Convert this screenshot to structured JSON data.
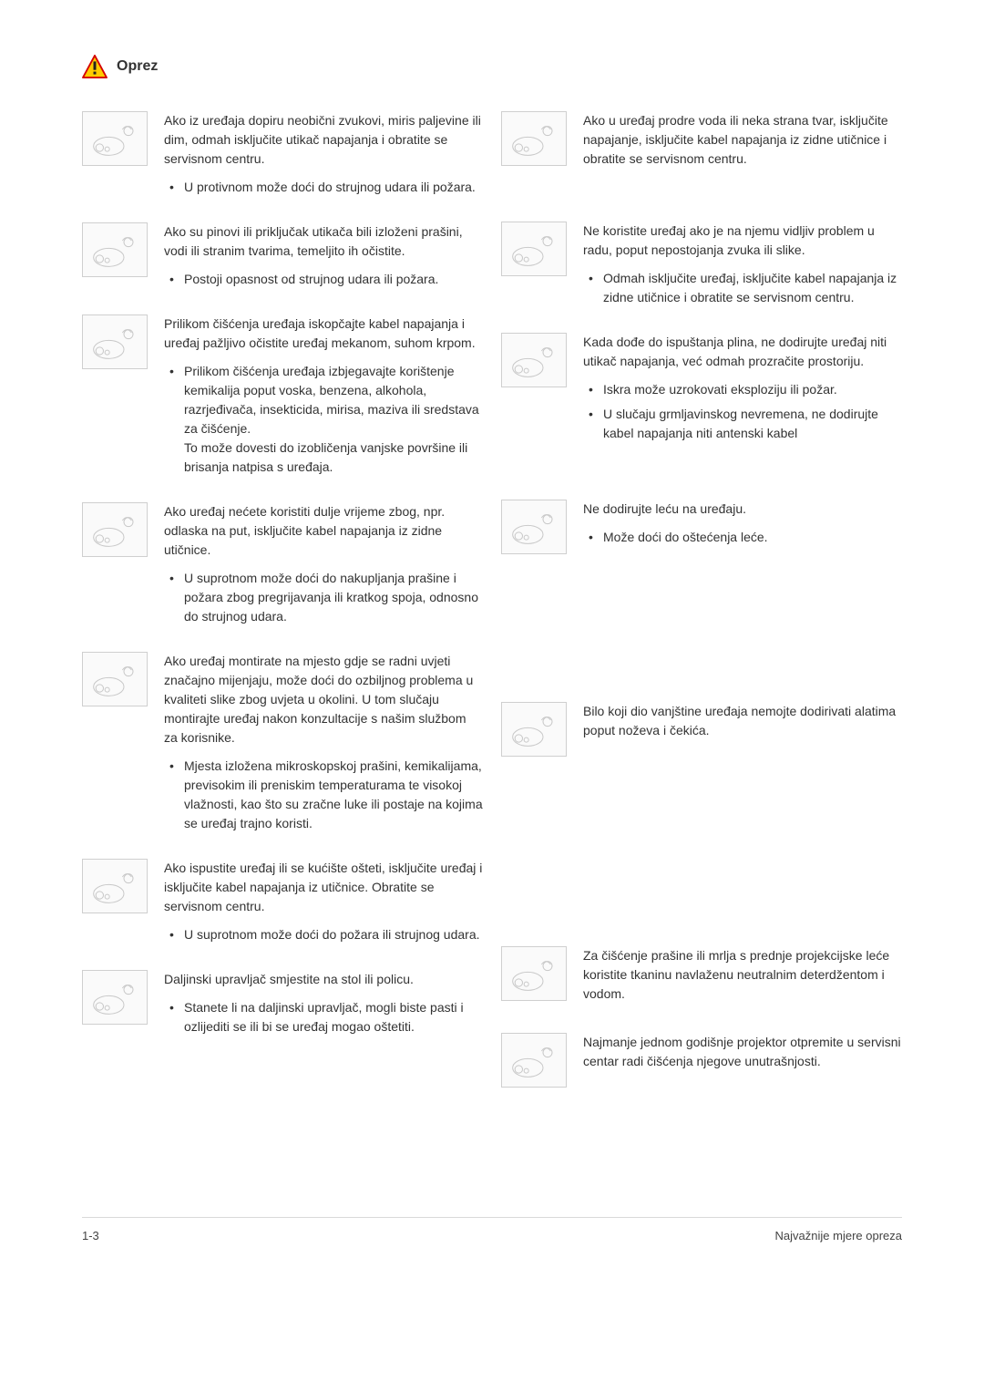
{
  "heading": "Oprez",
  "footer": {
    "left": "1-3",
    "right": "Najvažnije mjere opreza"
  },
  "colors": {
    "text": "#333333",
    "border": "#cfcfcf",
    "footer_rule": "#d9d9d9",
    "icon_yellow": "#ffcc00",
    "icon_red": "#d40000",
    "icon_stroke": "#222222"
  },
  "left": [
    {
      "main": "Ako iz uređaja dopiru neobični zvukovi, miris paljevine ili dim, odmah isključite utikač napajanja i obratite se servisnom centru.",
      "bullets": [
        "U protivnom može doći do strujnog udara ili požara."
      ]
    },
    {
      "main": "Ako su pinovi ili priključak utikača bili izloženi prašini, vodi ili stranim tvarima, temeljito ih očistite.",
      "bullets": [
        "Postoji opasnost od strujnog udara ili požara."
      ]
    },
    {
      "main": "Prilikom čišćenja uređaja iskopčajte kabel napajanja i uređaj pažljivo očistite uređaj mekanom, suhom krpom.",
      "bullets": [
        "Prilikom čišćenja uređaja izbjegavajte korištenje kemikalija poput voska, benzena, alkohola, razrjeđivača, insekticida, mirisa, maziva ili sredstava za čišćenje.\nTo može dovesti do izobličenja vanjske površine ili brisanja natpisa s uređaja."
      ]
    },
    {
      "main": "Ako uređaj nećete koristiti dulje vrijeme zbog, npr. odlaska na put, isključite kabel napajanja iz zidne utičnice.",
      "bullets": [
        "U suprotnom može doći do nakupljanja prašine i požara zbog pregrijavanja ili kratkog spoja, odnosno do strujnog udara."
      ]
    },
    {
      "main": "Ako uređaj montirate na mjesto gdje se radni uvjeti značajno mijenjaju, može doći do ozbiljnog problema u kvaliteti slike zbog uvjeta u okolini. U tom slučaju montirajte uređaj nakon konzultacije s našim službom za korisnike.",
      "bullets": [
        "Mjesta izložena mikroskopskoj prašini, kemikalijama, previsokim ili preniskim temperaturama te visokoj vlažnosti, kao što su zračne luke ili postaje na kojima se uređaj trajno koristi."
      ]
    },
    {
      "main": "Ako ispustite uređaj ili se kućište ošteti, isključite uređaj i isključite kabel napajanja iz utičnice. Obratite se servisnom centru.",
      "bullets": [
        "U suprotnom može doći do požara ili strujnog udara."
      ]
    },
    {
      "main": "Daljinski upravljač smjestite na stol ili policu.",
      "bullets": [
        "Stanete li na daljinski upravljač, mogli biste pasti i ozlijediti se ili bi se uređaj mogao oštetiti."
      ]
    }
  ],
  "right": [
    {
      "main": "Ako u uređaj prodre voda ili neka strana tvar, isključite napajanje, isključite kabel napajanja iz zidne utičnice i obratite se servisnom centru.",
      "bullets": []
    },
    {
      "main": "Ne koristite uređaj ako je na njemu vidljiv problem u radu, poput nepostojanja zvuka ili slike.",
      "bullets": [
        "Odmah isključite uređaj, isključite kabel napajanja iz zidne utičnice i obratite se servisnom centru."
      ]
    },
    {
      "main": "Kada dođe do ispuštanja plina, ne dodirujte uređaj niti utikač napajanja, već odmah prozračite prostoriju.",
      "bullets": [
        "Iskra može uzrokovati eksploziju ili požar.",
        "U slučaju grmljavinskog nevremena, ne dodirujte kabel napajanja niti antenski kabel"
      ]
    },
    {
      "main": "Ne dodirujte leću na uređaju.",
      "bullets": [
        "Može doći do oštećenja leće."
      ]
    },
    {
      "main": "Bilo koji dio vanjštine uređaja nemojte dodirivati alatima poput noževa i čekića.",
      "bullets": []
    },
    {
      "main": "Za čišćenje prašine ili mrlja s prednje projekcijske leće koristite tkaninu navlaženu neutralnim deterdžentom i vodom.",
      "bullets": []
    },
    {
      "main": "Najmanje jednom godišnje projektor otpremite u servisni centar radi čišćenja njegove unutrašnjosti.",
      "bullets": []
    }
  ],
  "right_gaps_before": {
    "3": 34,
    "4": 140,
    "5": 186
  },
  "right_extra_gap_after_first": 26
}
